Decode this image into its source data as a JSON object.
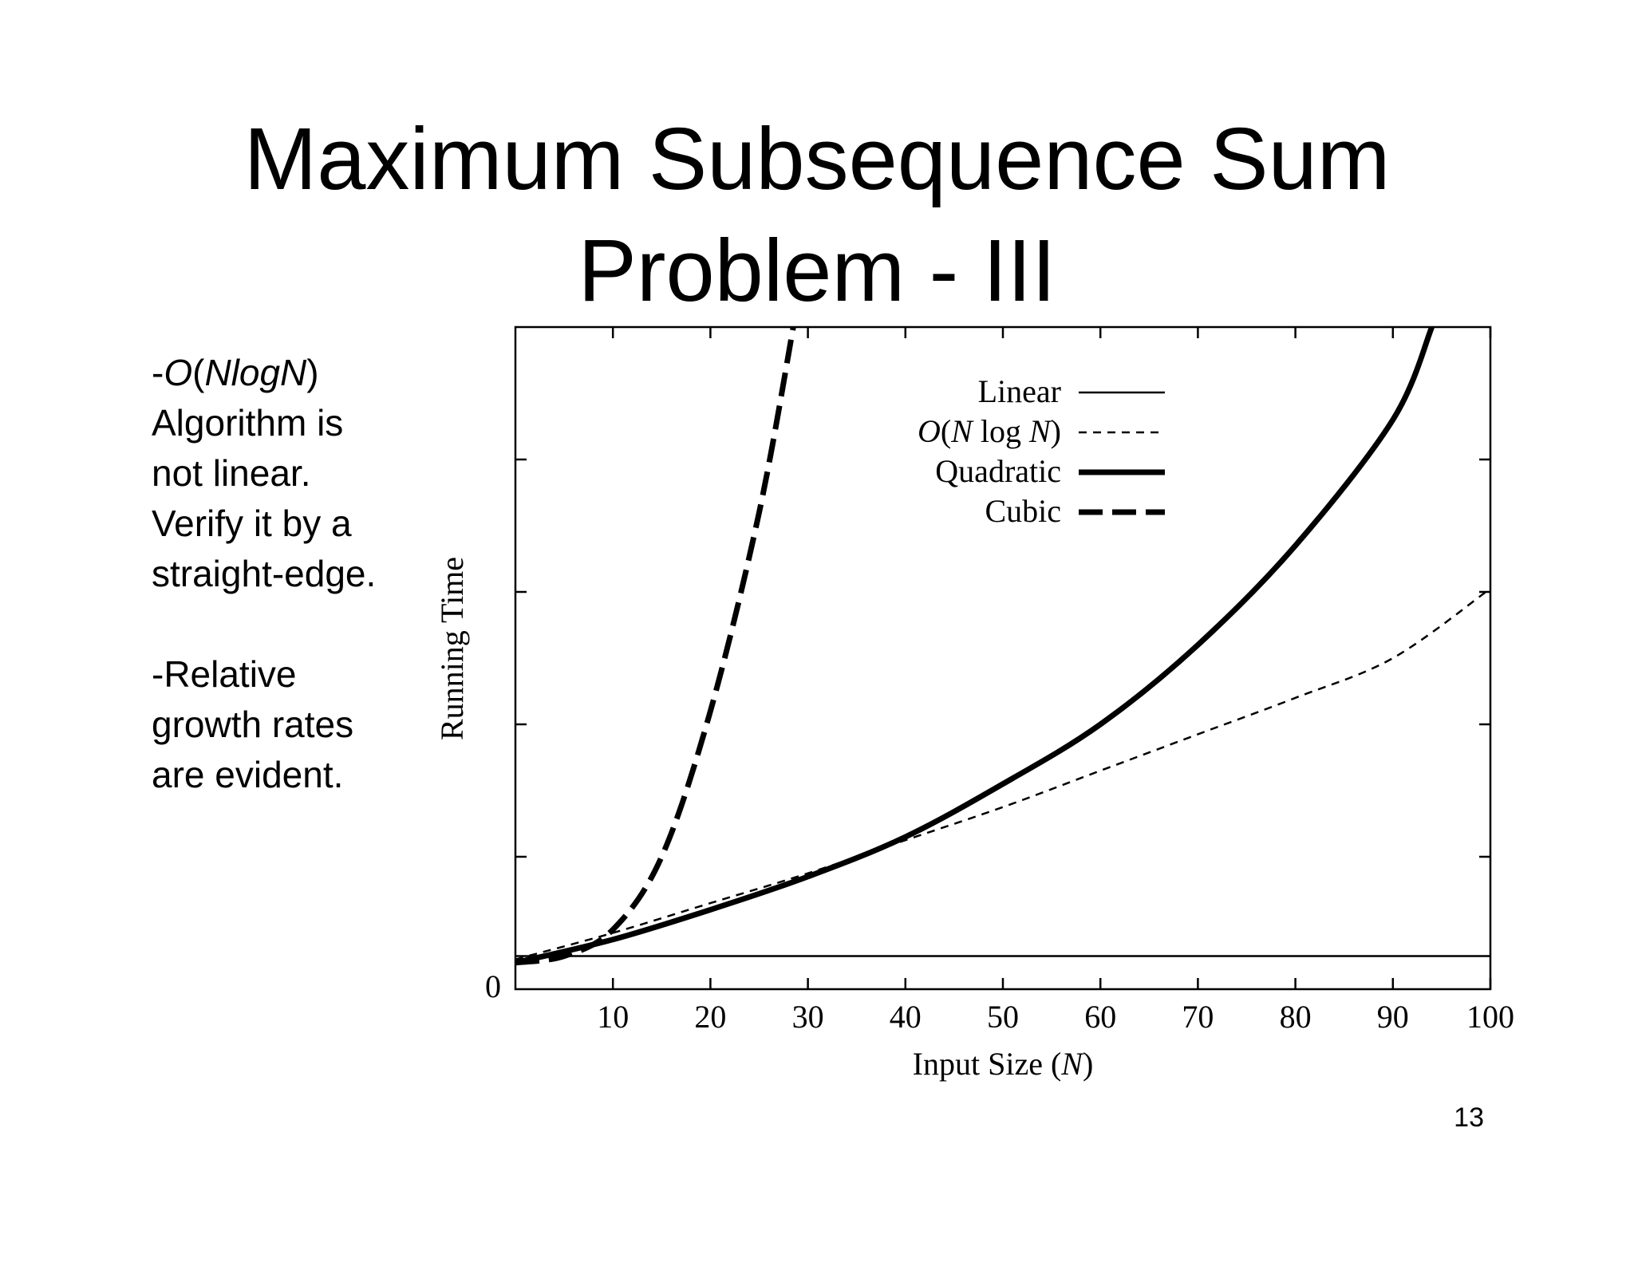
{
  "slide": {
    "title_line1": "Maximum Subsequence Sum",
    "title_line2": "Problem - III",
    "bullet1": {
      "prefix": "-",
      "big_o": "O",
      "open_paren": "(",
      "complexity": "NlogN",
      "close_paren": ")",
      "line2": "Algorithm is",
      "line3": "not linear.",
      "line4": "Verify it by a",
      "line5": "straight-edge."
    },
    "bullet2": {
      "line1": "-Relative",
      "line2": "growth rates",
      "line3": "are evident."
    },
    "page_number": "13"
  },
  "chart_data": {
    "type": "line",
    "xlabel_text": "Input Size (",
    "xlabel_var": "N",
    "xlabel_close": ")",
    "ylabel": "Running Time",
    "x_ticks": [
      "10",
      "20",
      "30",
      "40",
      "50",
      "60",
      "70",
      "80",
      "90",
      "100"
    ],
    "y_tick_zero": "0",
    "xlim": [
      0,
      100
    ],
    "ylim": [
      0,
      1
    ],
    "grid": false,
    "legend_position": "top-right",
    "series": [
      {
        "name": "Linear",
        "style": "solid-thin",
        "x": [
          0,
          100
        ],
        "y": [
          0.05,
          0.05
        ]
      },
      {
        "name": "O(N log N)",
        "style": "dashed-short",
        "x": [
          0,
          10,
          20,
          30,
          40,
          50,
          60,
          70,
          80,
          90,
          100
        ],
        "y": [
          0.045,
          0.085,
          0.13,
          0.175,
          0.225,
          0.275,
          0.33,
          0.385,
          0.44,
          0.5,
          0.605
        ]
      },
      {
        "name": "Quadratic",
        "style": "solid-thick",
        "x": [
          0,
          10,
          20,
          30,
          40,
          50,
          60,
          70,
          80,
          90,
          94
        ],
        "y": [
          0.04,
          0.075,
          0.12,
          0.17,
          0.23,
          0.31,
          0.4,
          0.52,
          0.67,
          0.86,
          1.0
        ]
      },
      {
        "name": "Cubic",
        "style": "dashed-long",
        "x": [
          0,
          5,
          10,
          15,
          20,
          25,
          28.5
        ],
        "y": [
          0.04,
          0.05,
          0.09,
          0.2,
          0.42,
          0.72,
          1.0
        ]
      }
    ],
    "legend": [
      {
        "label_type": "text",
        "label": "Linear",
        "style": "solid-thin"
      },
      {
        "label_type": "onlogn",
        "label_o": "O",
        "label_open": "(",
        "label_n": "N",
        "label_log": " log ",
        "label_n2": "N",
        "label_close": ")",
        "style": "dashed-short"
      },
      {
        "label_type": "text",
        "label": "Quadratic",
        "style": "solid-thick"
      },
      {
        "label_type": "text",
        "label": "Cubic",
        "style": "dashed-long"
      }
    ]
  }
}
